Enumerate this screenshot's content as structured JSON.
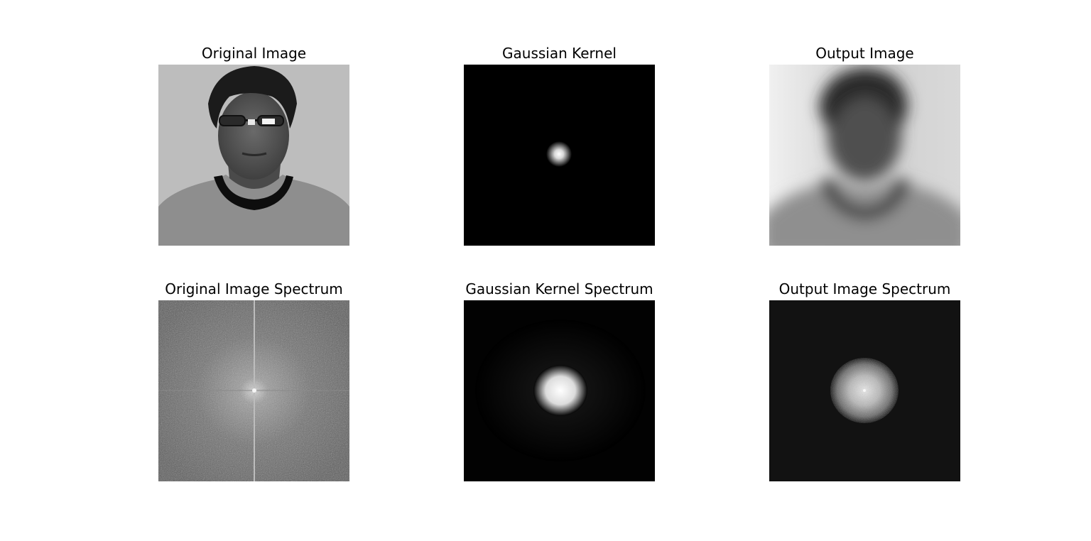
{
  "figure": {
    "panels": [
      {
        "title": "Original Image"
      },
      {
        "title": "Gaussian Kernel"
      },
      {
        "title": "Output Image"
      },
      {
        "title": "Original Image Spectrum"
      },
      {
        "title": "Gaussian Kernel Spectrum"
      },
      {
        "title": "Output Image Spectrum"
      }
    ]
  },
  "colors": {
    "background": "#ffffff",
    "kernel_background": "#000000",
    "output_spectrum_background": "#121212",
    "original_spectrum_background": "#5e5e5e"
  }
}
